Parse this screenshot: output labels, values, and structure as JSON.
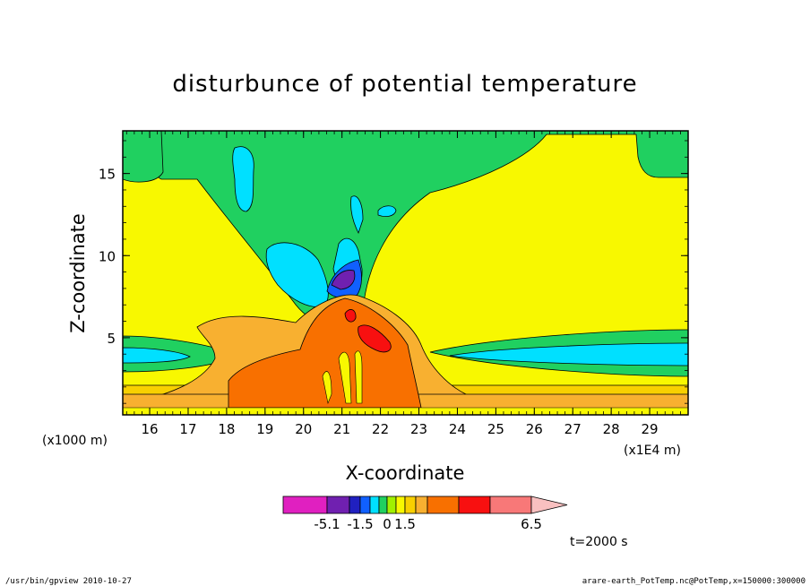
{
  "chart_data": {
    "type": "heatmap",
    "title": "disturbunce of potential temperature",
    "xlabel": "X-coordinate",
    "ylabel": "Z-coordinate",
    "x_unit_note": "(x1E4 m)",
    "y_unit_note": "(x1000 m)",
    "xlim": [
      15.3,
      30.0
    ],
    "ylim": [
      0.3,
      17.6
    ],
    "x_ticks": [
      16,
      17,
      18,
      19,
      20,
      21,
      22,
      23,
      24,
      25,
      26,
      27,
      28,
      29
    ],
    "y_ticks": [
      5,
      10,
      15
    ],
    "colorbar": {
      "colors": [
        "#e020c0",
        "#7020b0",
        "#2020c0",
        "#1060ff",
        "#00e0ff",
        "#20d060",
        "#a0f000",
        "#f8f800",
        "#f8d000",
        "#f8b030",
        "#f87000",
        "#f81010",
        "#f87878",
        "#f8c0c0"
      ],
      "tick_labels": [
        {
          "label": "-5.1",
          "value": -5.1
        },
        {
          "label": "-1.5",
          "value": -1.5
        },
        {
          "label": "0",
          "value": 0
        },
        {
          "label": "1.5",
          "value": 1.5
        },
        {
          "label": "6.5",
          "value": 6.5
        }
      ]
    },
    "annotation": "t=2000 s"
  },
  "footer": {
    "left": "/usr/bin/gpview  2010-10-27",
    "right": "arare-earth_PotTemp.nc@PotTemp,x=150000:300000"
  }
}
